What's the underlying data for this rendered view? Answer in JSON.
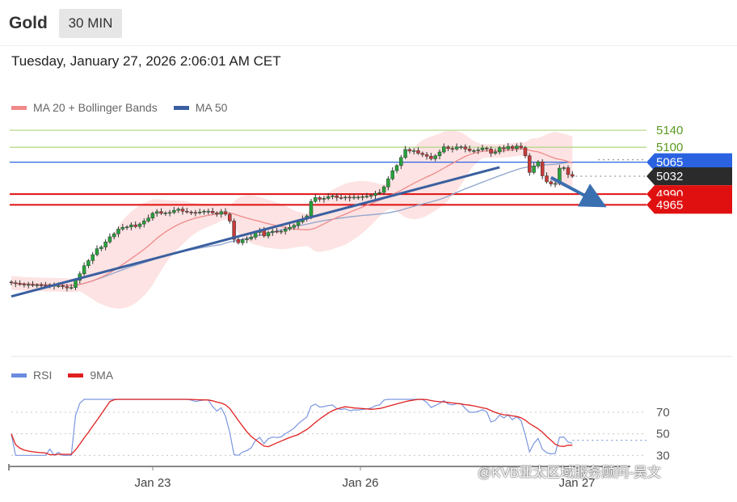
{
  "header": {
    "instrument": "Gold",
    "timeframe": "30 MIN"
  },
  "timestamp": "Tuesday, January 27, 2026 2:06:01 AM CET",
  "legend_main": [
    {
      "label": "MA 20 + Bollinger Bands",
      "color": "#f08a8a"
    },
    {
      "label": "MA 50",
      "color": "#3a5fa0"
    }
  ],
  "legend_rsi": [
    {
      "label": "RSI",
      "color": "#6a8be0"
    },
    {
      "label": "9MA",
      "color": "#e02020"
    }
  ],
  "watermark": "@KVB亚太区域服务顾问-吴文",
  "chart_data": [
    {
      "type": "candlestick",
      "x_ticks": [
        "Jan 23",
        "Jan 26",
        "Jan 27"
      ],
      "ylim": [
        4630,
        5180
      ],
      "horizontal_levels": [
        {
          "value": 5140,
          "label": "5140",
          "color": "#b5d98c",
          "label_color": "#5a9a20",
          "badge": false
        },
        {
          "value": 5100,
          "label": "5100",
          "color": "#b5d98c",
          "label_color": "#5a9a20",
          "badge": false
        },
        {
          "value": 5065,
          "label": "5065",
          "color": "#2a62e0",
          "label_color": "#ffffff",
          "badge": true,
          "badge_color": "#2a62e0"
        },
        {
          "value": 5032,
          "label": "5032",
          "color": "#999999",
          "label_color": "#ffffff",
          "badge": true,
          "badge_color": "#2b2b2b",
          "dotted": true
        },
        {
          "value": 4990,
          "label": "4990",
          "color": "#e01010",
          "label_color": "#ffffff",
          "badge": true,
          "badge_color": "#e01010"
        },
        {
          "value": 4965,
          "label": "4965",
          "color": "#e01010",
          "label_color": "#ffffff",
          "badge": true,
          "badge_color": "#e01010"
        }
      ],
      "trendline": {
        "from": {
          "bar": 0,
          "price": 4750
        },
        "to": {
          "bar": 114,
          "price": 5053
        },
        "color": "#3a5fa0"
      },
      "arrow": {
        "from": {
          "bar": 126,
          "price": 5029
        },
        "to": {
          "bar": 137,
          "price": 4970
        },
        "color": "#3a6fb0"
      },
      "ma50_color": "#8fa4cc",
      "ma20_color": "#f08a8a",
      "bollinger_fill": "#fde3e3",
      "closes": [
        4782,
        4780,
        4779,
        4777,
        4778,
        4776,
        4777,
        4776,
        4775,
        4777,
        4774,
        4775,
        4773,
        4770,
        4771,
        4788,
        4803,
        4822,
        4834,
        4848,
        4862,
        4866,
        4878,
        4890,
        4897,
        4908,
        4912,
        4913,
        4918,
        4914,
        4920,
        4927,
        4934,
        4945,
        4949,
        4945,
        4946,
        4947,
        4952,
        4955,
        4950,
        4948,
        4947,
        4946,
        4948,
        4950,
        4950,
        4946,
        4943,
        4949,
        4943,
        4927,
        4884,
        4876,
        4883,
        4885,
        4889,
        4900,
        4905,
        4892,
        4900,
        4903,
        4902,
        4903,
        4908,
        4912,
        4917,
        4925,
        4932,
        4939,
        4973,
        4982,
        4978,
        4980,
        4984,
        4986,
        4982,
        4981,
        4983,
        4981,
        4983,
        4983,
        4984,
        4985,
        4987,
        4992,
        4994,
        5007,
        5026,
        5045,
        5057,
        5076,
        5095,
        5091,
        5092,
        5086,
        5083,
        5079,
        5073,
        5080,
        5089,
        5101,
        5097,
        5096,
        5101,
        5101,
        5096,
        5092,
        5092,
        5094,
        5098,
        5096,
        5086,
        5089,
        5099,
        5096,
        5102,
        5097,
        5103,
        5099,
        5080,
        5041,
        5056,
        5066,
        5033,
        5019,
        5014,
        5015,
        5051,
        5052,
        5036,
        5032
      ],
      "rsi": {
        "ylim": [
          25,
          85
        ],
        "levels": [
          70,
          50,
          30
        ],
        "current": 44
      }
    }
  ]
}
